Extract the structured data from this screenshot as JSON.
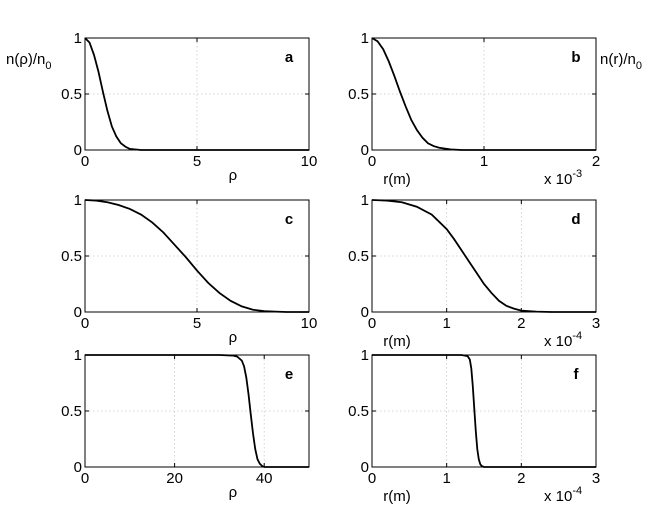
{
  "ylabels": {
    "left": "n(ρ)/n",
    "left_sub": "0",
    "right": "n(r)/n",
    "right_sub": "0"
  },
  "chart_data": [
    {
      "id": "a",
      "type": "line",
      "panel_label": "a",
      "xlabel": "ρ",
      "xlim": [
        0,
        10
      ],
      "ylim": [
        0,
        1
      ],
      "xticks": [
        0,
        5,
        10
      ],
      "xtick_labels": [
        "0",
        "5",
        "10"
      ],
      "yticks": [
        0,
        0.5,
        1
      ],
      "ytick_labels": [
        "0",
        "0.5",
        "1"
      ],
      "scale_exponent": "",
      "series": [
        {
          "x": [
            0,
            0.2,
            0.4,
            0.6,
            0.8,
            1.0,
            1.2,
            1.4,
            1.6,
            1.8,
            2.0,
            2.5,
            3,
            10
          ],
          "y": [
            1,
            0.96,
            0.85,
            0.7,
            0.52,
            0.35,
            0.21,
            0.12,
            0.06,
            0.03,
            0.01,
            0,
            0,
            0
          ]
        }
      ]
    },
    {
      "id": "b",
      "type": "line",
      "panel_label": "b",
      "xlabel": "r(m)",
      "xlim": [
        0,
        2
      ],
      "ylim": [
        0,
        1
      ],
      "xticks": [
        0,
        1,
        2
      ],
      "xtick_labels": [
        "0",
        "1",
        "2"
      ],
      "yticks": [
        0,
        0.5,
        1
      ],
      "ytick_labels": [
        "0",
        "0.5",
        "1"
      ],
      "scale_exponent": "x 10",
      "scale_power": "-3",
      "series": [
        {
          "x": [
            0,
            0.05,
            0.1,
            0.15,
            0.2,
            0.25,
            0.3,
            0.35,
            0.4,
            0.45,
            0.5,
            0.55,
            0.6,
            0.7,
            0.8,
            1.0,
            2.0
          ],
          "y": [
            1,
            0.97,
            0.9,
            0.79,
            0.66,
            0.52,
            0.39,
            0.27,
            0.18,
            0.11,
            0.06,
            0.035,
            0.02,
            0.005,
            0,
            0,
            0
          ]
        }
      ]
    },
    {
      "id": "c",
      "type": "line",
      "panel_label": "c",
      "xlabel": "ρ",
      "xlim": [
        0,
        10
      ],
      "ylim": [
        0,
        1
      ],
      "xticks": [
        0,
        5,
        10
      ],
      "xtick_labels": [
        "0",
        "5",
        "10"
      ],
      "yticks": [
        0,
        0.5,
        1
      ],
      "ytick_labels": [
        "0",
        "0.5",
        "1"
      ],
      "scale_exponent": "",
      "series": [
        {
          "x": [
            0,
            0.5,
            1,
            1.5,
            2,
            2.5,
            3,
            3.5,
            4,
            4.5,
            5,
            5.5,
            6,
            6.5,
            7,
            7.5,
            8,
            8.5,
            9,
            10
          ],
          "y": [
            1,
            0.995,
            0.98,
            0.955,
            0.92,
            0.87,
            0.8,
            0.71,
            0.6,
            0.49,
            0.37,
            0.26,
            0.17,
            0.1,
            0.05,
            0.02,
            0.008,
            0.003,
            0,
            0
          ]
        }
      ]
    },
    {
      "id": "d",
      "type": "line",
      "panel_label": "d",
      "xlabel": "r(m)",
      "xlim": [
        0,
        3
      ],
      "ylim": [
        0,
        1
      ],
      "xticks": [
        0,
        1,
        2,
        3
      ],
      "xtick_labels": [
        "0",
        "1",
        "2",
        "3"
      ],
      "yticks": [
        0,
        0.5,
        1
      ],
      "ytick_labels": [
        "0",
        "0.5",
        "1"
      ],
      "scale_exponent": "x 10",
      "scale_power": "-4",
      "series": [
        {
          "x": [
            0,
            0.2,
            0.4,
            0.6,
            0.8,
            1.0,
            1.1,
            1.2,
            1.3,
            1.4,
            1.5,
            1.6,
            1.7,
            1.8,
            1.9,
            2.0,
            2.2,
            2.4,
            3.0
          ],
          "y": [
            1,
            0.995,
            0.98,
            0.94,
            0.87,
            0.74,
            0.65,
            0.55,
            0.45,
            0.35,
            0.25,
            0.17,
            0.1,
            0.055,
            0.03,
            0.012,
            0.003,
            0,
            0
          ]
        }
      ]
    },
    {
      "id": "e",
      "type": "line",
      "panel_label": "e",
      "xlabel": "ρ",
      "xlim": [
        0,
        50
      ],
      "ylim": [
        0,
        1
      ],
      "xticks": [
        0,
        20,
        40
      ],
      "xtick_labels": [
        "0",
        "20",
        "40"
      ],
      "yticks": [
        0,
        0.5,
        1
      ],
      "ytick_labels": [
        "0",
        "0.5",
        "1"
      ],
      "scale_exponent": "",
      "series": [
        {
          "x": [
            0,
            30,
            33,
            34,
            35,
            35.5,
            36,
            36.5,
            37,
            37.5,
            38,
            38.5,
            39,
            39.5,
            40,
            50
          ],
          "y": [
            1,
            1,
            0.995,
            0.985,
            0.95,
            0.9,
            0.8,
            0.65,
            0.47,
            0.3,
            0.16,
            0.07,
            0.03,
            0.01,
            0,
            0
          ]
        }
      ]
    },
    {
      "id": "f",
      "type": "line",
      "panel_label": "f",
      "xlabel": "r(m)",
      "xlim": [
        0,
        3
      ],
      "ylim": [
        0,
        1
      ],
      "xticks": [
        0,
        1,
        2,
        3
      ],
      "xtick_labels": [
        "0",
        "1",
        "2",
        "3"
      ],
      "yticks": [
        0,
        0.5,
        1
      ],
      "ytick_labels": [
        "0",
        "0.5",
        "1"
      ],
      "scale_exponent": "x 10",
      "scale_power": "-4",
      "series": [
        {
          "x": [
            0,
            1.2,
            1.28,
            1.31,
            1.33,
            1.35,
            1.37,
            1.39,
            1.41,
            1.43,
            1.45,
            1.47,
            1.5,
            3.0
          ],
          "y": [
            1,
            1,
            0.99,
            0.96,
            0.88,
            0.72,
            0.52,
            0.32,
            0.16,
            0.07,
            0.025,
            0.008,
            0,
            0
          ]
        }
      ]
    }
  ]
}
